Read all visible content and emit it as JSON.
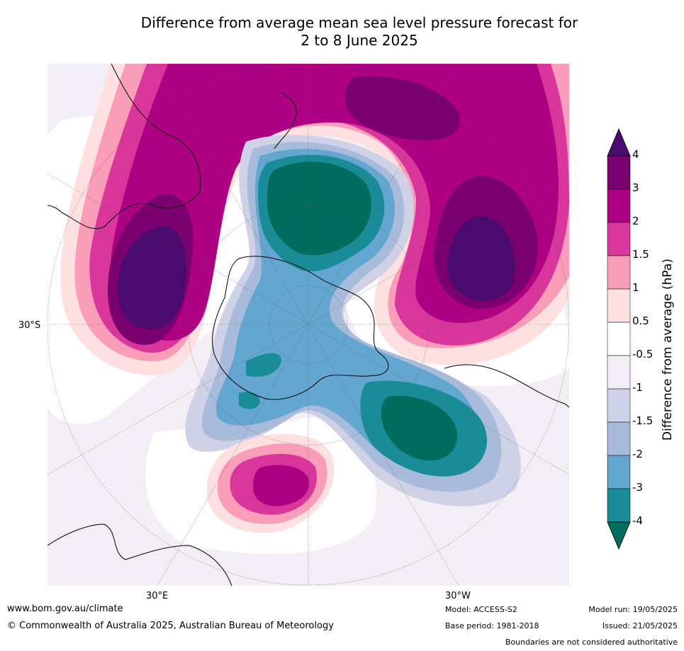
{
  "title_line1": "Difference from average mean sea level pressure forecast for",
  "title_line2": "2 to 8 June 2025",
  "map": {
    "lat_labels": [
      "30°S"
    ],
    "lon_labels": [
      "30°E",
      "30°W"
    ]
  },
  "colorbar": {
    "title": "Difference from average (hPa)",
    "labels": [
      "4",
      "3",
      "2",
      "1.5",
      "1",
      "0.5",
      "-0.5",
      "-1",
      "-1.5",
      "-2",
      "-3",
      "-4"
    ],
    "colors": [
      "#4a0a6e",
      "#7a006f",
      "#ad0082",
      "#d9369c",
      "#f99db8",
      "#fde0df",
      "#ffffff",
      "#f3eef5",
      "#cfd1e6",
      "#a8bbdb",
      "#63a6cf",
      "#1a8c97",
      "#006c5d"
    ]
  },
  "footer": {
    "website": "www.bom.gov.au/climate",
    "copyright": "© Commonwealth of Australia 2025, Australian Bureau of Meteorology",
    "model": "Model: ACCESS-S2",
    "base_period": "Base period: 1981-2018",
    "model_run": "Model run: 19/05/2025",
    "issued": "Issued: 21/05/2025",
    "boundaries": "Boundaries are not considered authoritative"
  }
}
